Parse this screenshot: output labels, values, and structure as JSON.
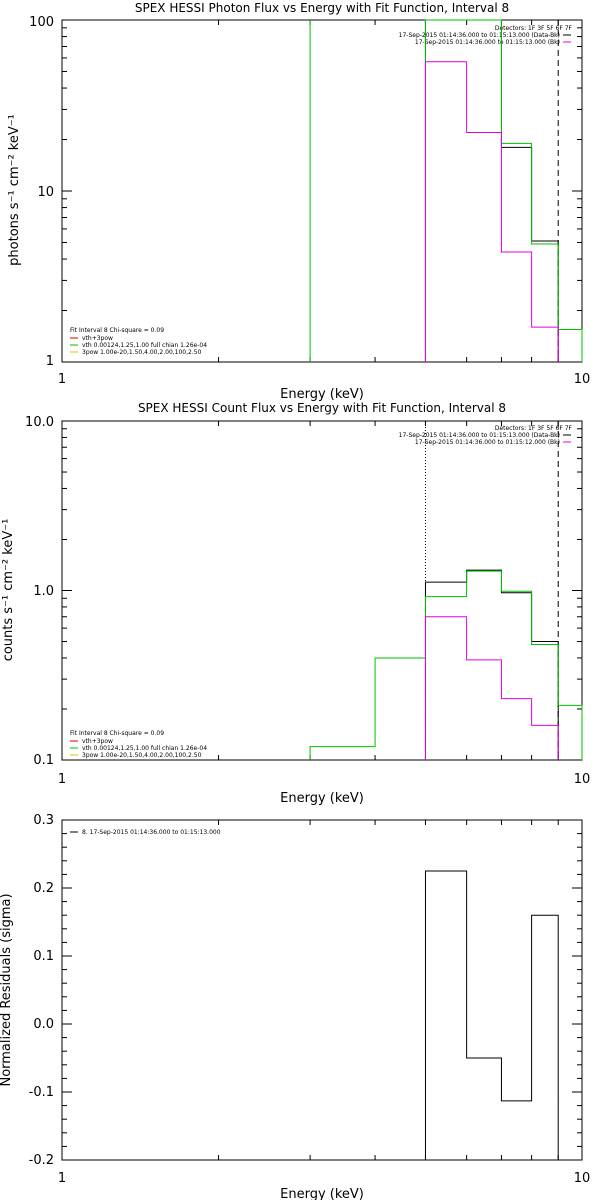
{
  "chart_data": [
    {
      "type": "line",
      "title": "SPEX HESSI Photon Flux vs Energy with Fit Function, Interval 8",
      "xlabel": "Energy (keV)",
      "ylabel": "photons s⁻¹ cm⁻² keV⁻¹",
      "xscale": "log",
      "yscale": "log",
      "xlim": [
        1,
        10
      ],
      "ylim": [
        1,
        100
      ],
      "xticks": [
        "1",
        "10"
      ],
      "yticks": [
        "1",
        "10",
        "100"
      ],
      "legend_tr": {
        "detectors": "Detectors: 1F 3F 5F 6F 7F",
        "data_label": "17-Sep-2015 01:14:36.000 to 01:15:13.000 (Data-Bk)",
        "bk_label": "17-Sep-2015 01:14:36.000 to 01:15:13.000 (Bk)"
      },
      "legend_bl": {
        "fit_info": "Fit Interval 8   Chi-square = 0.09",
        "items": [
          {
            "label": "vth+3pow",
            "color": "#e00000"
          },
          {
            "label": "vth 0.00124,1.25,1.00  full chian 1.26e-04",
            "color": "#00c000"
          },
          {
            "label": "3pow 1.00e-20,1.50,4.00,2.00,100,2.50",
            "color": "#e0c000"
          }
        ]
      },
      "vlines": [
        {
          "x": 3.0,
          "color": "#00c000",
          "style": "solid"
        },
        {
          "x": 5.0,
          "color": "#000000",
          "style": "solid"
        },
        {
          "x": 9.0,
          "color": "#000000",
          "style": "dashed"
        }
      ],
      "series": [
        {
          "name": "data",
          "color": "#000000",
          "edges": [
            5,
            6,
            7,
            8,
            9
          ],
          "values": [
            100,
            100,
            18,
            5.1
          ]
        },
        {
          "name": "model",
          "color": "#00c000",
          "edges": [
            5,
            6,
            7,
            8,
            9,
            10
          ],
          "values": [
            100,
            100,
            19,
            4.9,
            1.55
          ]
        },
        {
          "name": "bk",
          "color": "#e000e0",
          "edges": [
            5,
            6,
            7,
            8,
            9
          ],
          "values": [
            57,
            22,
            4.4,
            1.6
          ]
        }
      ]
    },
    {
      "type": "line",
      "title": "SPEX HESSI Count Flux vs Energy with Fit Function, Interval 8",
      "xlabel": "Energy (keV)",
      "ylabel": "counts s⁻¹ cm⁻² keV⁻¹",
      "xscale": "log",
      "yscale": "log",
      "xlim": [
        1,
        10
      ],
      "ylim": [
        0.1,
        10
      ],
      "xticks": [
        "1",
        "10"
      ],
      "yticks": [
        "0.1",
        "1.0",
        "10.0"
      ],
      "legend_tr": {
        "detectors": "Detectors: 1F 3F 5F 6F 7F",
        "data_label": "17-Sep-2015 01:14:36.000 to 01:15:13.000 (Data-Bk)",
        "bk_label": "17-Sep-2015 01:14:36.000 to 01:15:12.000 (Bk)"
      },
      "legend_bl": {
        "fit_info": "Fit Interval 8   Chi-square = 0.09",
        "items": [
          {
            "label": "vth+3pow",
            "color": "#e00000"
          },
          {
            "label": "vth 0.00124,1.25,1.00  full chian 1.26e-04",
            "color": "#00c000"
          },
          {
            "label": "3pow 1.00e-20,1.50,4.00,2.00,100,2.50",
            "color": "#e0c000"
          }
        ]
      },
      "vlines": [
        {
          "x": 5.0,
          "color": "#000000",
          "style": "dotted"
        },
        {
          "x": 9.0,
          "color": "#000000",
          "style": "dashed"
        }
      ],
      "series": [
        {
          "name": "data",
          "color": "#000000",
          "edges": [
            5,
            6,
            7,
            8,
            9
          ],
          "values": [
            1.12,
            1.32,
            0.97,
            0.5
          ]
        },
        {
          "name": "model",
          "color": "#00c000",
          "edges": [
            3,
            4,
            5,
            6,
            7,
            8,
            9,
            10
          ],
          "values": [
            0.12,
            0.4,
            0.92,
            1.3,
            0.99,
            0.48,
            0.21
          ]
        },
        {
          "name": "bk",
          "color": "#e000e0",
          "edges": [
            5,
            6,
            7,
            8,
            9
          ],
          "values": [
            0.7,
            0.39,
            0.23,
            0.16
          ]
        }
      ]
    },
    {
      "type": "line",
      "title": "",
      "xlabel": "Energy (keV)",
      "ylabel": "Normalized Residuals (sigma)",
      "xscale": "log",
      "yscale": "linear",
      "xlim": [
        1,
        10
      ],
      "ylim": [
        -0.2,
        0.3
      ],
      "xticks": [
        "1",
        "10"
      ],
      "yticks": [
        "-0.2",
        "-0.1",
        "0.0",
        "0.1",
        "0.2",
        "0.3"
      ],
      "legend_tl": "8. 17-Sep-2015 01:14:36.000 to 01:15:13.000",
      "series": [
        {
          "name": "residuals",
          "color": "#000000",
          "edges": [
            5,
            6,
            7,
            8,
            9
          ],
          "values": [
            0.225,
            -0.05,
            -0.113,
            0.16
          ]
        }
      ]
    }
  ]
}
